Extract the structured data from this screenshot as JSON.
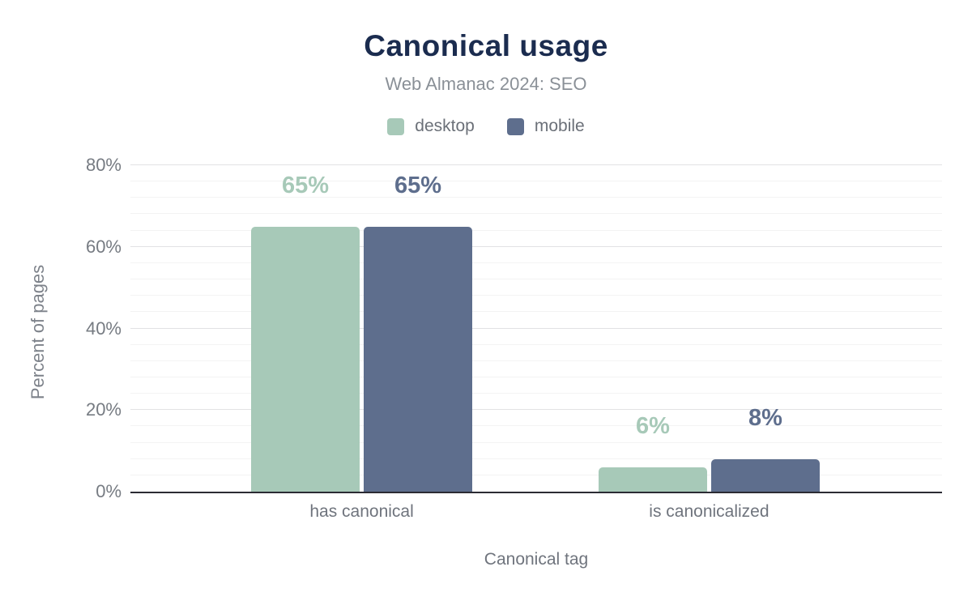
{
  "header": {
    "title": "Canonical usage",
    "subtitle": "Web Almanac 2024: SEO"
  },
  "colors": {
    "title": "#1b2c4f",
    "desktop": "#a7c9b8",
    "mobile": "#5e6e8d",
    "axis_line": "#2b2b33"
  },
  "chart_data": {
    "type": "bar",
    "title": "Canonical usage",
    "subtitle": "Web Almanac 2024: SEO",
    "categories": [
      "has canonical",
      "is canonicalized"
    ],
    "series": [
      {
        "name": "desktop",
        "color": "#a7c9b8",
        "values": [
          65,
          6
        ],
        "labels": [
          "65%",
          "6%"
        ]
      },
      {
        "name": "mobile",
        "color": "#5e6e8d",
        "values": [
          65,
          8
        ],
        "labels": [
          "65%",
          "8%"
        ]
      }
    ],
    "xlabel": "Canonical tag",
    "ylabel": "Percent of pages",
    "ylim": [
      0,
      80
    ],
    "yticks": [
      0,
      20,
      40,
      60,
      80
    ],
    "ytick_labels": [
      "0%",
      "20%",
      "40%",
      "60%",
      "80%"
    ],
    "minor_grid_step": 4,
    "grid": true,
    "legend_position": "top"
  }
}
